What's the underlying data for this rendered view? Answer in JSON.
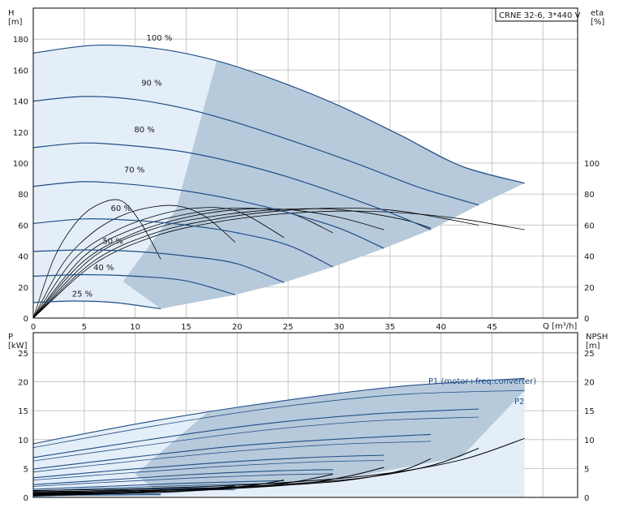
{
  "chart_data": [
    {
      "type": "line",
      "title": "CRNE 32-6, 3*440 V",
      "xlabel": "Q [m³/h]",
      "ylabel": "H\n[m]",
      "ylabel_right": "eta\n[%]",
      "x_ticks": [
        "0",
        "5",
        "10",
        "15",
        "20",
        "25",
        "30",
        "35",
        "40",
        "45"
      ],
      "y_ticks": [
        "0",
        "20",
        "40",
        "60",
        "80",
        "100",
        "120",
        "140",
        "160",
        "180"
      ],
      "y_ticks_right": [
        "0",
        "20",
        "40",
        "60",
        "80",
        "100"
      ],
      "xlim": [
        0,
        53.4
      ],
      "ylim": [
        0,
        200
      ],
      "grid": true,
      "colors": {
        "head_curve": "#1f4e85",
        "envelope_fill": "#b7cadc",
        "envelope_light": "#e4eef8",
        "eta_curve": "#000000"
      },
      "head_curves": [
        {
          "name": "100 %",
          "x": [
            0,
            6,
            12,
            18,
            24,
            30,
            36,
            42,
            48.2
          ],
          "y": [
            171,
            176,
            174,
            166,
            153,
            137,
            118,
            98,
            87
          ]
        },
        {
          "name": "90 %",
          "x": [
            0,
            5,
            10,
            15,
            20,
            26,
            32,
            38,
            43.7
          ],
          "y": [
            140,
            143,
            141,
            135,
            126,
            113,
            99,
            84,
            73
          ]
        },
        {
          "name": "80 %",
          "x": [
            0,
            5,
            10,
            15,
            20,
            25,
            30,
            35,
            39.0
          ],
          "y": [
            110,
            113,
            111,
            107,
            100,
            91,
            80,
            68,
            57
          ]
        },
        {
          "name": "70 %",
          "x": [
            0,
            5,
            10,
            15,
            20,
            25,
            30,
            34.4
          ],
          "y": [
            85,
            88,
            86,
            82,
            76,
            68,
            58,
            45
          ]
        },
        {
          "name": "60 %",
          "x": [
            0,
            5,
            10,
            15,
            20,
            25,
            29.4
          ],
          "y": [
            61,
            64,
            63,
            60,
            55,
            47,
            33
          ]
        },
        {
          "name": "50 %",
          "x": [
            0,
            5,
            10,
            15,
            20,
            24.6
          ],
          "y": [
            43,
            44,
            43,
            40,
            35,
            23
          ]
        },
        {
          "name": "40 %",
          "x": [
            0,
            5,
            10,
            15,
            19.8
          ],
          "y": [
            27,
            28,
            27,
            24,
            15
          ]
        },
        {
          "name": "25 %",
          "x": [
            0,
            4,
            8,
            12.5
          ],
          "y": [
            10,
            11,
            10,
            6
          ]
        }
      ],
      "eta_curves": [
        {
          "x": [
            0,
            2,
            4,
            6,
            8.5,
            10.5,
            12.5
          ],
          "y": [
            0,
            38,
            60,
            72,
            76,
            62,
            38
          ]
        },
        {
          "x": [
            0,
            3,
            6,
            9,
            12,
            14.5,
            17,
            19.8
          ],
          "y": [
            0,
            36,
            56,
            67,
            72,
            72,
            65,
            49
          ]
        },
        {
          "x": [
            0,
            4,
            8,
            12,
            16,
            20,
            24.6
          ],
          "y": [
            0,
            38,
            56,
            66,
            71,
            69,
            52
          ]
        },
        {
          "x": [
            0,
            5,
            10,
            15,
            20,
            25,
            29.4
          ],
          "y": [
            0,
            40,
            58,
            67,
            71,
            68,
            55
          ]
        },
        {
          "x": [
            0,
            5,
            10,
            15,
            20,
            25,
            30,
            34.4
          ],
          "y": [
            0,
            37,
            55,
            65,
            70,
            70,
            65,
            57
          ]
        },
        {
          "x": [
            0,
            6,
            12,
            18,
            24,
            30,
            36,
            39.0
          ],
          "y": [
            0,
            40,
            58,
            66,
            70,
            70,
            64,
            58
          ]
        },
        {
          "x": [
            0,
            6,
            12,
            18,
            24,
            30,
            36,
            43.7
          ],
          "y": [
            0,
            37,
            55,
            64,
            69,
            71,
            69,
            60
          ]
        },
        {
          "x": [
            0,
            6,
            12,
            18,
            24,
            30,
            36,
            42,
            48.2
          ],
          "y": [
            0,
            35,
            53,
            62,
            67,
            69,
            68,
            64,
            57
          ]
        }
      ]
    },
    {
      "type": "line",
      "xlabel": "",
      "ylabel": "P\n[kW]",
      "ylabel_right": "NPSH\n[m]",
      "y_ticks": [
        "0",
        "5",
        "10",
        "15",
        "20",
        "25"
      ],
      "y_ticks_right": [
        "0",
        "5",
        "10",
        "15",
        "20",
        "25"
      ],
      "xlim": [
        0,
        53.4
      ],
      "ylim": [
        0,
        28.5
      ],
      "grid": true,
      "annotations": [
        "P1 (motor+freq.converter)",
        "P2"
      ],
      "p1_curves": [
        {
          "name": "P1 (motor+freq.converter)",
          "x": [
            0,
            12,
            24,
            36,
            48.2
          ],
          "y": [
            9.3,
            13.3,
            16.6,
            19.2,
            20.6
          ]
        },
        {
          "x": [
            0,
            11,
            22,
            33,
            43.7
          ],
          "y": [
            6.9,
            9.9,
            12.6,
            14.4,
            15.3
          ]
        },
        {
          "x": [
            0,
            10,
            20,
            30,
            39.0
          ],
          "y": [
            4.9,
            7.0,
            8.9,
            10.1,
            10.9
          ]
        },
        {
          "x": [
            0,
            9,
            18,
            27,
            34.4
          ],
          "y": [
            3.4,
            4.8,
            6.0,
            6.9,
            7.3
          ]
        },
        {
          "x": [
            0,
            8,
            16,
            24,
            29.4
          ],
          "y": [
            2.2,
            3.1,
            4.0,
            4.6,
            4.8
          ]
        },
        {
          "x": [
            0,
            7,
            14,
            20,
            24.6
          ],
          "y": [
            1.4,
            1.9,
            2.4,
            2.7,
            2.9
          ]
        },
        {
          "x": [
            0,
            5,
            10,
            15,
            19.8
          ],
          "y": [
            0.8,
            1.1,
            1.4,
            1.6,
            1.7
          ]
        },
        {
          "x": [
            0,
            4,
            8,
            12.5
          ],
          "y": [
            0.3,
            0.45,
            0.55,
            0.6
          ]
        }
      ],
      "p2_curves": [
        {
          "name": "P2",
          "x": [
            0,
            12,
            24,
            36,
            48.2
          ],
          "y": [
            8.6,
            12.4,
            15.6,
            17.8,
            18.5
          ]
        },
        {
          "x": [
            0,
            11,
            22,
            33,
            43.7
          ],
          "y": [
            6.3,
            9.0,
            11.5,
            13.2,
            13.9
          ]
        },
        {
          "x": [
            0,
            10,
            20,
            30,
            39.0
          ],
          "y": [
            4.4,
            6.3,
            8.0,
            9.2,
            9.7
          ]
        },
        {
          "x": [
            0,
            9,
            18,
            27,
            34.4
          ],
          "y": [
            3.0,
            4.2,
            5.3,
            6.1,
            6.4
          ]
        },
        {
          "x": [
            0,
            8,
            16,
            24,
            29.4
          ],
          "y": [
            1.9,
            2.7,
            3.4,
            3.9,
            4.1
          ]
        },
        {
          "x": [
            0,
            7,
            14,
            20,
            24.6
          ],
          "y": [
            1.1,
            1.6,
            2.0,
            2.3,
            2.4
          ]
        },
        {
          "x": [
            0,
            5,
            10,
            15,
            19.8
          ],
          "y": [
            0.6,
            0.9,
            1.1,
            1.3,
            1.3
          ]
        },
        {
          "x": [
            0,
            4,
            8,
            12.5
          ],
          "y": [
            0.2,
            0.35,
            0.4,
            0.45
          ]
        }
      ],
      "npsh_curves": [
        {
          "x": [
            0,
            12,
            24,
            34,
            42,
            48.2
          ],
          "y": [
            1.2,
            1.6,
            2.5,
            4.0,
            6.5,
            10.2
          ]
        },
        {
          "x": [
            0,
            12,
            22,
            32,
            39,
            43.7
          ],
          "y": [
            1.0,
            1.3,
            2.0,
            3.3,
            5.5,
            8.5
          ]
        },
        {
          "x": [
            0,
            10,
            20,
            30,
            36,
            39.0
          ],
          "y": [
            0.8,
            1.1,
            1.7,
            2.8,
            4.6,
            6.7
          ]
        },
        {
          "x": [
            0,
            10,
            18,
            26,
            31,
            34.4
          ],
          "y": [
            0.7,
            0.9,
            1.4,
            2.3,
            3.7,
            5.2
          ]
        },
        {
          "x": [
            0,
            8,
            16,
            22,
            26,
            29.4
          ],
          "y": [
            0.6,
            0.8,
            1.2,
            1.9,
            2.8,
            4.0
          ]
        },
        {
          "x": [
            0,
            8,
            14,
            18,
            22,
            24.6
          ],
          "y": [
            0.5,
            0.7,
            1.0,
            1.5,
            2.2,
            3.0
          ]
        },
        {
          "x": [
            0,
            6,
            12,
            16,
            19.8
          ],
          "y": [
            0.4,
            0.6,
            0.9,
            1.3,
            2.0
          ]
        },
        {
          "x": [
            0,
            5,
            9,
            12.5
          ],
          "y": [
            0.3,
            0.5,
            0.8,
            1.2
          ]
        }
      ]
    }
  ]
}
